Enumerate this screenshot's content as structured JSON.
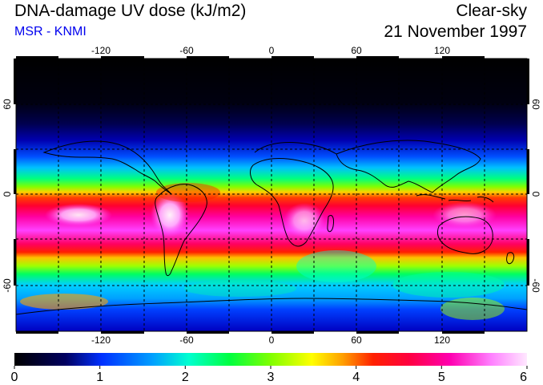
{
  "header": {
    "title": "DNA-damage UV dose (kJ/m2)",
    "subtitle": "MSR - KNMI",
    "condition": "Clear-sky",
    "date": "21 November 1997"
  },
  "map": {
    "lon_ticks": [
      "-120",
      "-60",
      "0",
      "60",
      "120"
    ],
    "lat_ticks": [
      "60",
      "0",
      "-60"
    ],
    "lon_values": [
      -120,
      -60,
      0,
      60,
      120
    ],
    "lat_values": [
      60,
      0,
      -60
    ]
  },
  "colorbar": {
    "labels": [
      "0",
      "1",
      "2",
      "3",
      "4",
      "5",
      "6"
    ],
    "min": 0,
    "max": 6,
    "colors": [
      "#000000",
      "#000040",
      "#0000c0",
      "#0060ff",
      "#00d0ff",
      "#00ffa0",
      "#00ff00",
      "#a0ff00",
      "#ffff00",
      "#ffa000",
      "#ff3000",
      "#ff0040",
      "#ff00a0",
      "#ff60ff",
      "#ffd0ff",
      "#ffffff"
    ]
  },
  "colors": {
    "subtitle": "#0000ee",
    "grid": "#000000"
  }
}
